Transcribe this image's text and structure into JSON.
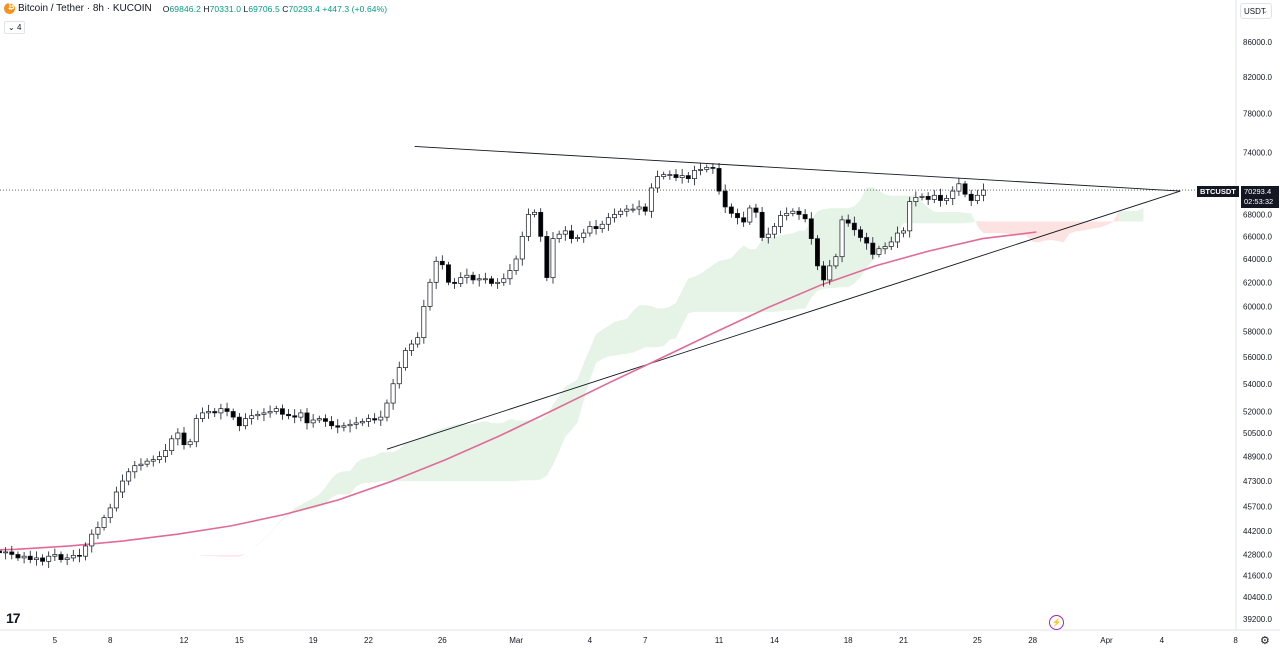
{
  "header": {
    "symbol": "Bitcoin / Tether · 8h · KUCOIN",
    "ohlc": {
      "O": "69846.2",
      "H": "70331.0",
      "L": "69706.5",
      "C": "70293.4",
      "change": "+447.3 (+0.64%)"
    },
    "indicator_count": "4",
    "currency": "USDT"
  },
  "price_label": {
    "ticker": "BTCUSDT",
    "price": "70293.4",
    "countdown": "02:53:32"
  },
  "colors": {
    "up": "#ffffff",
    "down": "#000000",
    "cloud_bull": "#e6f4e8",
    "cloud_bear": "#fde2e2",
    "ma_line": "#e06b97",
    "trendline": "#131722"
  },
  "chart_data": {
    "type": "candlestick",
    "y_scale": "log",
    "ylim": [
      39200,
      87500
    ],
    "y_ticks": [
      39200,
      40400,
      41600,
      42800,
      44200,
      45700,
      47300,
      48900,
      50500,
      52000,
      54000,
      56000,
      58000,
      60000,
      62000,
      64000,
      66000,
      68000,
      70000,
      74000,
      78000,
      82000,
      86000
    ],
    "y_tick_labels": [
      "39200.0",
      "40400.0",
      "41600.0",
      "42800.0",
      "44200.0",
      "45700.0",
      "47300.0",
      "48900.0",
      "50500.0",
      "52000.0",
      "54000.0",
      "56000.0",
      "58000.0",
      "60000.0",
      "62000.0",
      "64000.0",
      "66000.0",
      "68000.0",
      "70000.0",
      "74000.0",
      "78000.0",
      "82000.0",
      "86000.0"
    ],
    "x_start": "Feb 1",
    "x_ticks": [
      {
        "day": 5,
        "label": "5"
      },
      {
        "day": 8,
        "label": "8"
      },
      {
        "day": 12,
        "label": "12"
      },
      {
        "day": 15,
        "label": "15"
      },
      {
        "day": 19,
        "label": "19"
      },
      {
        "day": 22,
        "label": "22"
      },
      {
        "day": 26,
        "label": "26"
      },
      {
        "day": 30,
        "label": "Mar"
      },
      {
        "day": 34,
        "label": "4"
      },
      {
        "day": 37,
        "label": "7"
      },
      {
        "day": 41,
        "label": "11"
      },
      {
        "day": 44,
        "label": "14"
      },
      {
        "day": 48,
        "label": "18"
      },
      {
        "day": 51,
        "label": "21"
      },
      {
        "day": 55,
        "label": "25"
      },
      {
        "day": 58,
        "label": "28"
      },
      {
        "day": 62,
        "label": "Apr"
      },
      {
        "day": 65,
        "label": "4"
      },
      {
        "day": 69,
        "label": "8"
      }
    ],
    "closes": [
      43000,
      42900,
      43100,
      43000,
      42900,
      42950,
      42800,
      42600,
      42700,
      42500,
      42600,
      42400,
      42700,
      42800,
      42500,
      42600,
      42750,
      42700,
      43300,
      44000,
      44400,
      45000,
      45600,
      46600,
      47300,
      47900,
      48300,
      48400,
      48600,
      48700,
      48900,
      49300,
      50100,
      50500,
      49700,
      49900,
      51500,
      51900,
      52000,
      51900,
      52200,
      52000,
      51600,
      51000,
      51500,
      51700,
      51800,
      51900,
      52000,
      52200,
      51800,
      51700,
      51600,
      51900,
      51200,
      51400,
      51500,
      51300,
      51000,
      50900,
      51000,
      51100,
      51200,
      51300,
      51500,
      51400,
      51600,
      52600,
      54000,
      55200,
      56500,
      57000,
      57500,
      60000,
      62000,
      63800,
      63500,
      62000,
      61900,
      62400,
      62600,
      62200,
      62300,
      62300,
      61900,
      62000,
      62300,
      63000,
      64000,
      66000,
      68000,
      68200,
      66000,
      62400,
      65800,
      66200,
      66500,
      65800,
      65900,
      66300,
      66900,
      66700,
      67100,
      67700,
      68000,
      68300,
      68500,
      68500,
      68700,
      68300,
      70500,
      71600,
      71800,
      71800,
      71500,
      71700,
      71400,
      72200,
      72300,
      72500,
      72400,
      70200,
      68700,
      68100,
      67700,
      67300,
      68600,
      68200,
      65900,
      66200,
      66900,
      67900,
      68100,
      68300,
      68000,
      67600,
      65800,
      63400,
      62200,
      63400,
      64200,
      67500,
      67200,
      66600,
      65900,
      65400,
      64400,
      64900,
      65100,
      65500,
      66300,
      66500,
      69200,
      69600,
      69700,
      69400,
      69800,
      69300,
      69500,
      70200,
      70900,
      69900,
      69300,
      69800,
      70293.4
    ],
    "series": [
      {
        "name": "",
        "type": "line",
        "values": [
          43000,
          43100,
          43300,
          43600,
          44000,
          44500,
          45200,
          46100,
          47300,
          48700,
          50300,
          52100,
          54000,
          55900,
          57900,
          59900,
          61800,
          63400,
          64700,
          65800,
          66400
        ]
      },
      {
        "name": "",
        "type": "cloud"
      }
    ],
    "trendlines": [
      {
        "from": {
          "day": 24.5,
          "price": 74600
        },
        "to": {
          "day": 66,
          "price": 70200
        }
      },
      {
        "from": {
          "day": 23,
          "price": 49400
        },
        "to": {
          "day": 66,
          "price": 70200
        }
      }
    ]
  }
}
